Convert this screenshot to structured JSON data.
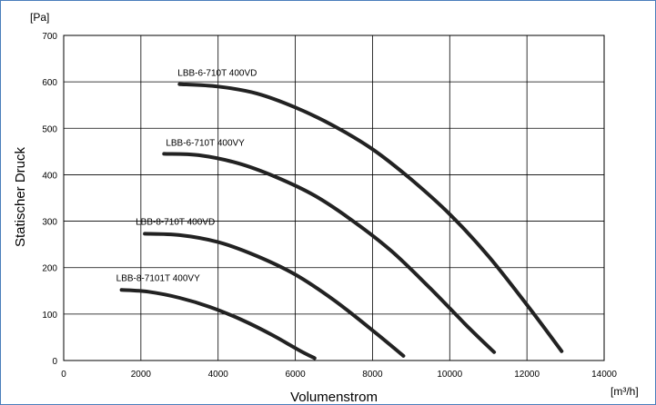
{
  "chart_data": {
    "type": "line",
    "title": "",
    "xlabel": "Volumenstrom",
    "ylabel": "Statischer Druck",
    "x_unit": "[m³/h]",
    "y_unit": "[Pa]",
    "xlim": [
      0,
      14000
    ],
    "ylim": [
      0,
      700
    ],
    "x_ticks": [
      "0",
      "2000",
      "4000",
      "6000",
      "8000",
      "10000",
      "12000",
      "14000"
    ],
    "y_ticks": [
      "0",
      "100",
      "200",
      "300",
      "400",
      "500",
      "600",
      "700"
    ],
    "grid": true,
    "series": [
      {
        "name": "LBB-6-710T 400VD",
        "x": [
          3000,
          4000,
          5000,
          6000,
          7000,
          8000,
          9000,
          10000,
          11000,
          12000,
          12900
        ],
        "y": [
          595,
          590,
          575,
          545,
          505,
          455,
          390,
          315,
          225,
          120,
          20
        ]
      },
      {
        "name": "LBB-6-710T 400VY",
        "x": [
          2600,
          3500,
          4500,
          5500,
          6500,
          7500,
          8500,
          9500,
          10500,
          11150
        ],
        "y": [
          445,
          442,
          425,
          395,
          355,
          300,
          235,
          155,
          70,
          18
        ]
      },
      {
        "name": "LBB-8-710T 400VD",
        "x": [
          2100,
          3000,
          4000,
          5000,
          6000,
          7000,
          8000,
          8800
        ],
        "y": [
          273,
          270,
          255,
          225,
          185,
          130,
          65,
          10
        ]
      },
      {
        "name": "LBB-8-7101T 400VY",
        "x": [
          1500,
          2200,
          3000,
          3800,
          4600,
          5400,
          6100,
          6500
        ],
        "y": [
          152,
          148,
          135,
          115,
          88,
          55,
          22,
          5
        ]
      }
    ]
  }
}
